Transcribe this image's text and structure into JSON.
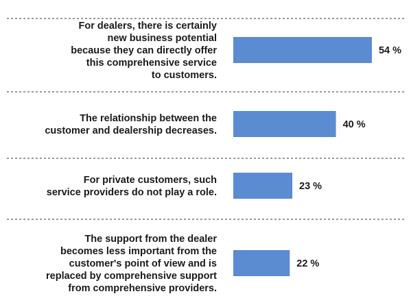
{
  "chart_data": {
    "type": "bar",
    "orientation": "horizontal",
    "categories": [
      "For dealers, there is certainly new business potential because they can directly offer this comprehensive service to customers.",
      "The relationship between the customer and dealership decreases.",
      "For private customers, such service providers do not play a role.",
      "The support from the dealer becomes less important from the customer's point of view and is replaced by comprehensive support from comprehensive providers."
    ],
    "category_lines": [
      [
        "For dealers, there is certainly",
        "new business potential",
        "because they can directly offer",
        "this comprehensive service",
        "to customers."
      ],
      [
        "The relationship between the",
        "customer and dealership decreases."
      ],
      [
        "For private customers, such",
        "service providers do not play a role."
      ],
      [
        "The support from the dealer",
        "becomes less important from the",
        "customer's point of view and is",
        "replaced by comprehensive support",
        "from comprehensive providers."
      ]
    ],
    "values": [
      54,
      40,
      23,
      22
    ],
    "value_labels": [
      "54 %",
      "40 %",
      "23 %",
      "22 %"
    ],
    "xlim": [
      0,
      100
    ],
    "bar_color": "#5b8bd0",
    "separator": "dashed",
    "grid": false,
    "legend": "none"
  }
}
